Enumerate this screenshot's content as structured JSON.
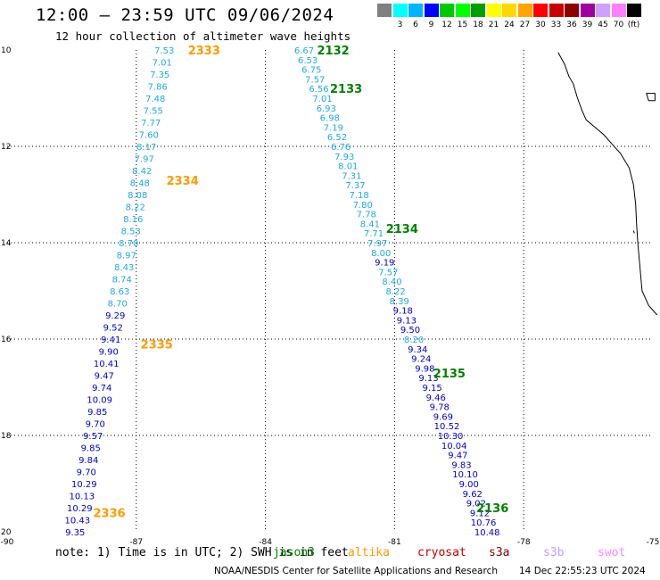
{
  "title": "12:00 – 23:59 UTC 09/06/2024",
  "subtitle": "12 hour collection of altimeter wave heights",
  "legend": {
    "unit": "(ft)",
    "bins": [
      {
        "label": "",
        "color": "#808080"
      },
      {
        "label": "3",
        "color": "#00ffff"
      },
      {
        "label": "6",
        "color": "#00b4ff"
      },
      {
        "label": "9",
        "color": "#0000ff"
      },
      {
        "label": "12",
        "color": "#00c800"
      },
      {
        "label": "15",
        "color": "#00ff00"
      },
      {
        "label": "18",
        "color": "#00a000"
      },
      {
        "label": "21",
        "color": "#ffff00"
      },
      {
        "label": "24",
        "color": "#ffd700"
      },
      {
        "label": "27",
        "color": "#ffa500"
      },
      {
        "label": "30",
        "color": "#ff0000"
      },
      {
        "label": "33",
        "color": "#c80000"
      },
      {
        "label": "36",
        "color": "#8b0000"
      },
      {
        "label": "39",
        "color": "#a000a0"
      },
      {
        "label": "45",
        "color": "#d0a0ff"
      },
      {
        "label": "70",
        "color": "#ff80ff"
      },
      {
        "label": "",
        "color": "#000000"
      }
    ]
  },
  "axes": {
    "lon_ticks": [
      "-90",
      "-87",
      "-84",
      "-81",
      "-78",
      "-75"
    ],
    "lat_ticks": [
      "10",
      "12",
      "14",
      "16",
      "18",
      "20"
    ]
  },
  "colors": {
    "jason": "#008000",
    "altika": "#ff9900",
    "cryosat": "#c00000",
    "s3a": "#800000",
    "s3b": "#c0a0ff",
    "swot": "#ff88ff",
    "swh_light": "#20a8e0",
    "swh_dark": "#0000c8"
  },
  "passes": [
    {
      "label": "2333",
      "color": "#ff9900",
      "lon": -85.8,
      "lat": 10.0
    },
    {
      "label": "2334",
      "color": "#ff9900",
      "lon": -86.3,
      "lat": 12.7
    },
    {
      "label": "2335",
      "color": "#ff9900",
      "lon": -86.9,
      "lat": 16.1
    },
    {
      "label": "2336",
      "color": "#ff9900",
      "lon": -88.0,
      "lat": 19.6
    },
    {
      "label": "2132",
      "color": "#008000",
      "lon": -82.8,
      "lat": 10.0
    },
    {
      "label": "2133",
      "color": "#008000",
      "lon": -82.5,
      "lat": 10.8
    },
    {
      "label": "2134",
      "color": "#008000",
      "lon": -81.2,
      "lat": 13.7
    },
    {
      "label": "2135",
      "color": "#008000",
      "lon": -80.1,
      "lat": 16.7
    },
    {
      "label": "2136",
      "color": "#008000",
      "lon": -79.1,
      "lat": 19.5
    }
  ],
  "track_left": [
    {
      "v": "7.53",
      "c": "l"
    },
    {
      "v": "7.01",
      "c": "l"
    },
    {
      "v": "7.35",
      "c": "l"
    },
    {
      "v": "7.86",
      "c": "l"
    },
    {
      "v": "7.48",
      "c": "l"
    },
    {
      "v": "7.55",
      "c": "l"
    },
    {
      "v": "7.77",
      "c": "l"
    },
    {
      "v": "7.60",
      "c": "l"
    },
    {
      "v": "8.17",
      "c": "l"
    },
    {
      "v": "7.97",
      "c": "l"
    },
    {
      "v": "8.42",
      "c": "l"
    },
    {
      "v": "8.48",
      "c": "l"
    },
    {
      "v": "8.08",
      "c": "l"
    },
    {
      "v": "8.22",
      "c": "l"
    },
    {
      "v": "8.16",
      "c": "l"
    },
    {
      "v": "8.53",
      "c": "l"
    },
    {
      "v": "8.70",
      "c": "l"
    },
    {
      "v": "8.97",
      "c": "l"
    },
    {
      "v": "8.43",
      "c": "l"
    },
    {
      "v": "8.74",
      "c": "l"
    },
    {
      "v": "8.63",
      "c": "l"
    },
    {
      "v": "8.70",
      "c": "l"
    },
    {
      "v": "9.29",
      "c": "d"
    },
    {
      "v": "9.52",
      "c": "d"
    },
    {
      "v": "9.41",
      "c": "d"
    },
    {
      "v": "9.90",
      "c": "d"
    },
    {
      "v": "10.41",
      "c": "d"
    },
    {
      "v": "9.47",
      "c": "d"
    },
    {
      "v": "9.74",
      "c": "d"
    },
    {
      "v": "10.09",
      "c": "d"
    },
    {
      "v": "9.85",
      "c": "d"
    },
    {
      "v": "9.70",
      "c": "d"
    },
    {
      "v": "9.57",
      "c": "d"
    },
    {
      "v": "9.85",
      "c": "d"
    },
    {
      "v": "9.84",
      "c": "d"
    },
    {
      "v": "9.70",
      "c": "d"
    },
    {
      "v": "10.29",
      "c": "d"
    },
    {
      "v": "10.13",
      "c": "d"
    },
    {
      "v": "10.29",
      "c": "d"
    },
    {
      "v": "10.43",
      "c": "d"
    },
    {
      "v": "9.35",
      "c": "d"
    }
  ],
  "track_right": [
    {
      "v": "6.67",
      "c": "l"
    },
    {
      "v": "6.53",
      "c": "l"
    },
    {
      "v": "6.75",
      "c": "l"
    },
    {
      "v": "7.57",
      "c": "l"
    },
    {
      "v": "6.56",
      "c": "l"
    },
    {
      "v": "7.01",
      "c": "l"
    },
    {
      "v": "6.93",
      "c": "l"
    },
    {
      "v": "6.98",
      "c": "l"
    },
    {
      "v": "7.19",
      "c": "l"
    },
    {
      "v": "6.52",
      "c": "l"
    },
    {
      "v": "6.76",
      "c": "l"
    },
    {
      "v": "7.93",
      "c": "l"
    },
    {
      "v": "8.01",
      "c": "l"
    },
    {
      "v": "7.31",
      "c": "l"
    },
    {
      "v": "7.37",
      "c": "l"
    },
    {
      "v": "7.18",
      "c": "l"
    },
    {
      "v": "7.80",
      "c": "l"
    },
    {
      "v": "7.78",
      "c": "l"
    },
    {
      "v": "8.41",
      "c": "l"
    },
    {
      "v": "7.71",
      "c": "l"
    },
    {
      "v": "7.97",
      "c": "l"
    },
    {
      "v": "8.00",
      "c": "l"
    },
    {
      "v": "9.19",
      "c": "d"
    },
    {
      "v": "7.57",
      "c": "l"
    },
    {
      "v": "8.40",
      "c": "l"
    },
    {
      "v": "8.22",
      "c": "l"
    },
    {
      "v": "8.39",
      "c": "l"
    },
    {
      "v": "9.18",
      "c": "d"
    },
    {
      "v": "9.13",
      "c": "d"
    },
    {
      "v": "9.50",
      "c": "d"
    },
    {
      "v": "8.20",
      "c": "l"
    },
    {
      "v": "9.34",
      "c": "d"
    },
    {
      "v": "9.24",
      "c": "d"
    },
    {
      "v": "9.98",
      "c": "d"
    },
    {
      "v": "9.13",
      "c": "d"
    },
    {
      "v": "9.15",
      "c": "d"
    },
    {
      "v": "9.46",
      "c": "d"
    },
    {
      "v": "9.78",
      "c": "d"
    },
    {
      "v": "9.69",
      "c": "d"
    },
    {
      "v": "10.52",
      "c": "d"
    },
    {
      "v": "10.30",
      "c": "d"
    },
    {
      "v": "10.04",
      "c": "d"
    },
    {
      "v": "9.47",
      "c": "d"
    },
    {
      "v": "9.83",
      "c": "d"
    },
    {
      "v": "10.10",
      "c": "d"
    },
    {
      "v": "9.00",
      "c": "d"
    },
    {
      "v": "9.62",
      "c": "d"
    },
    {
      "v": "9.02",
      "c": "d"
    },
    {
      "v": "9.12",
      "c": "d"
    },
    {
      "v": "10.76",
      "c": "d"
    },
    {
      "v": "10.48",
      "c": "d"
    }
  ],
  "footer": {
    "note": "note: 1) Time is in UTC; 2) SWH is in feet",
    "sat_jason": "jason3",
    "sat_altika": "altika",
    "sat_cryosat": "cryosat",
    "sat_s3a": "s3a",
    "sat_s3b": "s3b",
    "sat_swot": "swot",
    "credit": "NOAA/NESDIS Center for Satellite Applications and Research",
    "timestamp": "14 Dec 22:55:23 UTC 2024"
  }
}
